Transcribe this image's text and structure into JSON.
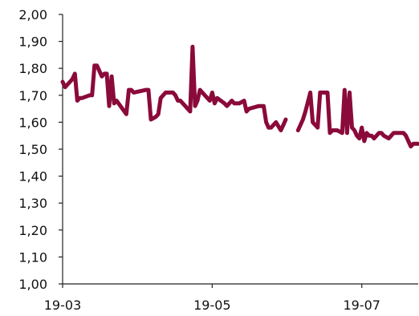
{
  "chart_data": {
    "type": "line",
    "title": "",
    "xlabel": "",
    "ylabel": "",
    "ylim": [
      1.0,
      2.0
    ],
    "y_ticks": [
      "1,00",
      "1,10",
      "1,20",
      "1,30",
      "1,40",
      "1,50",
      "1,60",
      "1,70",
      "1,80",
      "1,90",
      "2,00"
    ],
    "x_ticks": [
      {
        "label": "19-03",
        "date": "2019-03-01"
      },
      {
        "label": "19-05",
        "date": "2019-05-01"
      },
      {
        "label": "19-07",
        "date": "2019-07-01"
      }
    ],
    "x_range": [
      "2019-03-01",
      "2019-07-24"
    ],
    "grid": false,
    "legend": "none",
    "series": [
      {
        "color": "#8a0a3a",
        "segments": [
          [
            [
              "2019-03-01",
              1.75
            ],
            [
              "2019-03-02",
              1.73
            ],
            [
              "2019-03-04",
              1.75
            ],
            [
              "2019-03-05",
              1.76
            ],
            [
              "2019-03-06",
              1.78
            ],
            [
              "2019-03-07",
              1.68
            ],
            [
              "2019-03-08",
              1.69
            ],
            [
              "2019-03-09",
              1.69
            ],
            [
              "2019-03-12",
              1.7
            ],
            [
              "2019-03-13",
              1.7
            ],
            [
              "2019-03-14",
              1.81
            ],
            [
              "2019-03-15",
              1.81
            ],
            [
              "2019-03-17",
              1.77
            ],
            [
              "2019-03-18",
              1.78
            ],
            [
              "2019-03-19",
              1.78
            ],
            [
              "2019-03-20",
              1.66
            ],
            [
              "2019-03-21",
              1.77
            ],
            [
              "2019-03-22",
              1.67
            ],
            [
              "2019-03-23",
              1.68
            ],
            [
              "2019-03-27",
              1.63
            ],
            [
              "2019-03-28",
              1.72
            ],
            [
              "2019-03-29",
              1.72
            ],
            [
              "2019-03-30",
              1.71
            ],
            [
              "2019-04-04",
              1.72
            ],
            [
              "2019-04-05",
              1.72
            ],
            [
              "2019-04-06",
              1.61
            ],
            [
              "2019-04-08",
              1.62
            ],
            [
              "2019-04-09",
              1.63
            ],
            [
              "2019-04-10",
              1.69
            ],
            [
              "2019-04-12",
              1.71
            ],
            [
              "2019-04-15",
              1.71
            ],
            [
              "2019-04-16",
              1.7
            ],
            [
              "2019-04-17",
              1.68
            ],
            [
              "2019-04-18",
              1.68
            ],
            [
              "2019-04-20",
              1.66
            ],
            [
              "2019-04-21",
              1.65
            ],
            [
              "2019-04-22",
              1.64
            ],
            [
              "2019-04-23",
              1.88
            ],
            [
              "2019-04-24",
              1.66
            ],
            [
              "2019-04-25",
              1.68
            ],
            [
              "2019-04-26",
              1.72
            ],
            [
              "2019-04-28",
              1.7
            ],
            [
              "2019-04-29",
              1.69
            ],
            [
              "2019-04-30",
              1.68
            ],
            [
              "2019-05-01",
              1.71
            ],
            [
              "2019-05-02",
              1.67
            ],
            [
              "2019-05-03",
              1.69
            ],
            [
              "2019-05-06",
              1.67
            ],
            [
              "2019-05-07",
              1.66
            ],
            [
              "2019-05-09",
              1.68
            ],
            [
              "2019-05-10",
              1.67
            ],
            [
              "2019-05-12",
              1.67
            ],
            [
              "2019-05-14",
              1.68
            ],
            [
              "2019-05-15",
              1.64
            ],
            [
              "2019-05-16",
              1.65
            ],
            [
              "2019-05-20",
              1.66
            ],
            [
              "2019-05-22",
              1.66
            ],
            [
              "2019-05-23",
              1.6
            ],
            [
              "2019-05-24",
              1.58
            ],
            [
              "2019-05-25",
              1.58
            ],
            [
              "2019-05-27",
              1.6
            ],
            [
              "2019-05-29",
              1.57
            ],
            [
              "2019-05-30",
              1.59
            ],
            [
              "2019-05-31",
              1.61
            ]
          ],
          [
            [
              "2019-06-05",
              1.57
            ],
            [
              "2019-06-07",
              1.61
            ],
            [
              "2019-06-08",
              1.64
            ],
            [
              "2019-06-10",
              1.71
            ],
            [
              "2019-06-11",
              1.6
            ],
            [
              "2019-06-12",
              1.59
            ],
            [
              "2019-06-13",
              1.58
            ],
            [
              "2019-06-14",
              1.71
            ],
            [
              "2019-06-15",
              1.71
            ],
            [
              "2019-06-17",
              1.71
            ],
            [
              "2019-06-18",
              1.56
            ],
            [
              "2019-06-19",
              1.57
            ],
            [
              "2019-06-21",
              1.57
            ],
            [
              "2019-06-23",
              1.56
            ],
            [
              "2019-06-24",
              1.72
            ],
            [
              "2019-06-25",
              1.56
            ],
            [
              "2019-06-26",
              1.71
            ],
            [
              "2019-06-27",
              1.58
            ],
            [
              "2019-06-28",
              1.57
            ],
            [
              "2019-06-29",
              1.55
            ],
            [
              "2019-06-30",
              1.54
            ],
            [
              "2019-07-01",
              1.58
            ],
            [
              "2019-07-02",
              1.53
            ],
            [
              "2019-07-03",
              1.56
            ],
            [
              "2019-07-04",
              1.55
            ],
            [
              "2019-07-05",
              1.55
            ],
            [
              "2019-07-06",
              1.54
            ],
            [
              "2019-07-08",
              1.56
            ],
            [
              "2019-07-09",
              1.56
            ],
            [
              "2019-07-10",
              1.55
            ],
            [
              "2019-07-12",
              1.54
            ],
            [
              "2019-07-14",
              1.56
            ],
            [
              "2019-07-15",
              1.56
            ],
            [
              "2019-07-17",
              1.56
            ],
            [
              "2019-07-18",
              1.56
            ],
            [
              "2019-07-19",
              1.55
            ],
            [
              "2019-07-21",
              1.51
            ],
            [
              "2019-07-22",
              1.52
            ],
            [
              "2019-07-24",
              1.52
            ]
          ]
        ]
      }
    ]
  }
}
